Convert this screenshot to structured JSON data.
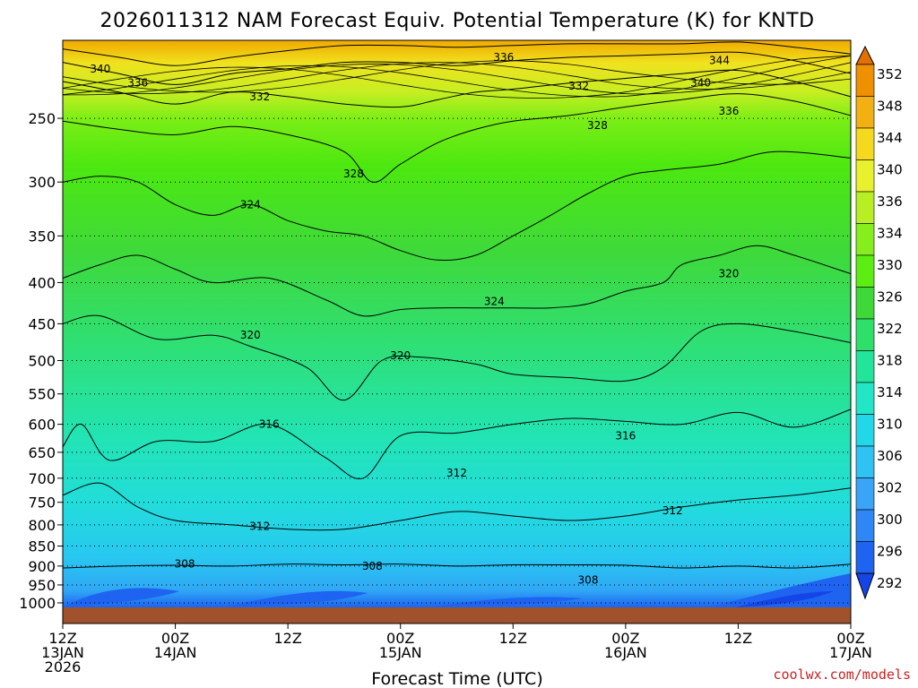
{
  "chart_data": {
    "type": "heatmap",
    "title": "2026011312 NAM Forecast Equiv. Potential Temperature (K) for KNTD",
    "xlabel": "Forecast Time (UTC)",
    "ylabel": "",
    "credit": "coolwx.com/models",
    "colors": {
      "credit": "#cc2222",
      "ground": "#a0522d"
    },
    "x_ticks": [
      {
        "hour": 0,
        "line1": "12Z",
        "line2": "13JAN",
        "line3": "2026"
      },
      {
        "hour": 12,
        "line1": "00Z",
        "line2": "14JAN",
        "line3": ""
      },
      {
        "hour": 24,
        "line1": "12Z",
        "line2": "",
        "line3": ""
      },
      {
        "hour": 36,
        "line1": "00Z",
        "line2": "15JAN",
        "line3": ""
      },
      {
        "hour": 48,
        "line1": "12Z",
        "line2": "",
        "line3": ""
      },
      {
        "hour": 60,
        "line1": "00Z",
        "line2": "16JAN",
        "line3": ""
      },
      {
        "hour": 72,
        "line1": "12Z",
        "line2": "",
        "line3": ""
      },
      {
        "hour": 84,
        "line1": "00Z",
        "line2": "17JAN",
        "line3": ""
      }
    ],
    "xlim": [
      0,
      84
    ],
    "y_ticks": [
      250,
      300,
      350,
      400,
      450,
      500,
      550,
      600,
      650,
      700,
      750,
      800,
      850,
      900,
      950,
      1000
    ],
    "ylim": [
      1013,
      200
    ],
    "colorbar": {
      "levels": [
        292,
        296,
        300,
        302,
        306,
        310,
        314,
        318,
        322,
        326,
        330,
        334,
        336,
        340,
        344,
        348,
        352
      ],
      "colors": [
        "#1545e6",
        "#1e64f0",
        "#2f86f5",
        "#3aa4f7",
        "#2ec3f2",
        "#22d8e8",
        "#22e6c6",
        "#22e49a",
        "#2ee06a",
        "#3ed939",
        "#5cee12",
        "#86ee1c",
        "#b8ee24",
        "#e8f12c",
        "#f5d91f",
        "#f2b012",
        "#ee9000",
        "#e07000"
      ]
    },
    "contours": [
      {
        "value": 308,
        "points": [
          [
            0,
            905
          ],
          [
            6,
            900
          ],
          [
            12,
            898
          ],
          [
            18,
            900
          ],
          [
            24,
            895
          ],
          [
            30,
            897
          ],
          [
            36,
            895
          ],
          [
            42,
            900
          ],
          [
            48,
            897
          ],
          [
            54,
            897
          ],
          [
            60,
            898
          ],
          [
            66,
            905
          ],
          [
            72,
            900
          ],
          [
            78,
            905
          ],
          [
            84,
            895
          ]
        ]
      },
      {
        "value": 312,
        "points": [
          [
            0,
            735
          ],
          [
            4,
            710
          ],
          [
            8,
            760
          ],
          [
            12,
            790
          ],
          [
            18,
            800
          ],
          [
            24,
            810
          ],
          [
            30,
            810
          ],
          [
            36,
            790
          ],
          [
            42,
            770
          ],
          [
            48,
            780
          ],
          [
            54,
            790
          ],
          [
            60,
            780
          ],
          [
            66,
            760
          ],
          [
            72,
            745
          ],
          [
            78,
            735
          ],
          [
            84,
            720
          ]
        ]
      },
      {
        "value": 316,
        "points": [
          [
            0,
            640
          ],
          [
            2,
            600
          ],
          [
            5,
            665
          ],
          [
            10,
            630
          ],
          [
            16,
            630
          ],
          [
            22,
            600
          ],
          [
            28,
            660
          ],
          [
            32,
            700
          ],
          [
            36,
            620
          ],
          [
            42,
            615
          ],
          [
            48,
            600
          ],
          [
            54,
            590
          ],
          [
            60,
            595
          ],
          [
            66,
            600
          ],
          [
            72,
            580
          ],
          [
            78,
            605
          ],
          [
            84,
            575
          ]
        ]
      },
      {
        "value": 320,
        "points": [
          [
            0,
            450
          ],
          [
            4,
            440
          ],
          [
            10,
            470
          ],
          [
            16,
            465
          ],
          [
            20,
            480
          ],
          [
            26,
            510
          ],
          [
            30,
            560
          ],
          [
            34,
            500
          ],
          [
            38,
            495
          ],
          [
            44,
            505
          ],
          [
            48,
            520
          ],
          [
            54,
            525
          ],
          [
            60,
            530
          ],
          [
            64,
            510
          ],
          [
            68,
            460
          ],
          [
            72,
            450
          ],
          [
            78,
            460
          ],
          [
            84,
            475
          ]
        ]
      },
      {
        "value": 324,
        "points": [
          [
            0,
            395
          ],
          [
            4,
            380
          ],
          [
            8,
            370
          ],
          [
            12,
            385
          ],
          [
            16,
            400
          ],
          [
            22,
            395
          ],
          [
            28,
            420
          ],
          [
            32,
            440
          ],
          [
            36,
            432
          ],
          [
            40,
            430
          ],
          [
            44,
            430
          ],
          [
            48,
            430
          ],
          [
            52,
            430
          ],
          [
            56,
            425
          ],
          [
            60,
            410
          ],
          [
            64,
            400
          ],
          [
            66,
            380
          ],
          [
            70,
            370
          ],
          [
            74,
            360
          ],
          [
            78,
            370
          ],
          [
            84,
            390
          ]
        ]
      },
      {
        "value": 328,
        "points": [
          [
            0,
            300
          ],
          [
            4,
            295
          ],
          [
            8,
            300
          ],
          [
            12,
            320
          ],
          [
            16,
            330
          ],
          [
            20,
            320
          ],
          [
            24,
            335
          ],
          [
            28,
            345
          ],
          [
            32,
            350
          ],
          [
            36,
            365
          ],
          [
            40,
            375
          ],
          [
            44,
            370
          ],
          [
            48,
            350
          ],
          [
            52,
            330
          ],
          [
            56,
            310
          ],
          [
            60,
            295
          ],
          [
            64,
            290
          ],
          [
            70,
            285
          ],
          [
            76,
            275
          ],
          [
            84,
            280
          ]
        ]
      },
      {
        "value": 332,
        "points": [
          [
            0,
            252
          ],
          [
            6,
            258
          ],
          [
            12,
            262
          ],
          [
            18,
            256
          ],
          [
            24,
            262
          ],
          [
            30,
            275
          ],
          [
            33,
            300
          ],
          [
            36,
            285
          ],
          [
            40,
            268
          ],
          [
            44,
            258
          ],
          [
            48,
            252
          ],
          [
            54,
            248
          ],
          [
            60,
            242
          ],
          [
            66,
            237
          ],
          [
            72,
            233
          ],
          [
            78,
            238
          ],
          [
            84,
            248
          ]
        ]
      },
      {
        "value": 336,
        "points": [
          [
            0,
            225
          ],
          [
            6,
            232
          ],
          [
            12,
            240
          ],
          [
            18,
            232
          ],
          [
            24,
            235
          ],
          [
            30,
            240
          ],
          [
            36,
            242
          ],
          [
            40,
            237
          ],
          [
            44,
            232
          ],
          [
            48,
            230
          ],
          [
            54,
            226
          ],
          [
            60,
            223
          ],
          [
            66,
            220
          ],
          [
            72,
            218
          ],
          [
            78,
            225
          ],
          [
            84,
            235
          ]
        ]
      },
      {
        "value": 340,
        "points": [
          [
            0,
            213
          ],
          [
            6,
            220
          ],
          [
            12,
            227
          ],
          [
            18,
            220
          ],
          [
            24,
            217
          ],
          [
            30,
            213
          ],
          [
            36,
            213
          ],
          [
            42,
            215
          ],
          [
            48,
            212
          ],
          [
            54,
            210
          ],
          [
            60,
            209
          ],
          [
            66,
            208
          ],
          [
            72,
            207
          ],
          [
            78,
            212
          ],
          [
            84,
            220
          ]
        ]
      },
      {
        "value": 344,
        "points": [
          [
            0,
            205
          ],
          [
            6,
            210
          ],
          [
            12,
            215
          ],
          [
            18,
            210
          ],
          [
            24,
            206
          ],
          [
            30,
            203
          ],
          [
            36,
            203
          ],
          [
            42,
            204
          ],
          [
            48,
            203
          ],
          [
            54,
            202
          ],
          [
            60,
            202
          ],
          [
            66,
            202
          ],
          [
            72,
            201
          ],
          [
            78,
            204
          ],
          [
            84,
            208
          ]
        ]
      }
    ],
    "contour_labels": [
      {
        "text": "340",
        "hour": 4,
        "p": 217
      },
      {
        "text": "336",
        "hour": 8,
        "p": 226
      },
      {
        "text": "332",
        "hour": 21,
        "p": 235
      },
      {
        "text": "336",
        "hour": 47,
        "p": 210
      },
      {
        "text": "344",
        "hour": 70,
        "p": 212
      },
      {
        "text": "332",
        "hour": 55,
        "p": 228
      },
      {
        "text": "340",
        "hour": 68,
        "p": 226
      },
      {
        "text": "336",
        "hour": 71,
        "p": 245
      },
      {
        "text": "328",
        "hour": 57,
        "p": 255
      },
      {
        "text": "328",
        "hour": 31,
        "p": 293
      },
      {
        "text": "324",
        "hour": 20,
        "p": 320
      },
      {
        "text": "320",
        "hour": 71,
        "p": 390
      },
      {
        "text": "324",
        "hour": 46,
        "p": 422
      },
      {
        "text": "320",
        "hour": 20,
        "p": 465
      },
      {
        "text": "320",
        "hour": 36,
        "p": 493
      },
      {
        "text": "316",
        "hour": 22,
        "p": 600
      },
      {
        "text": "316",
        "hour": 60,
        "p": 620
      },
      {
        "text": "312",
        "hour": 42,
        "p": 690
      },
      {
        "text": "312",
        "hour": 65,
        "p": 768
      },
      {
        "text": "312",
        "hour": 21,
        "p": 803
      },
      {
        "text": "308",
        "hour": 13,
        "p": 895
      },
      {
        "text": "308",
        "hour": 33,
        "p": 900
      },
      {
        "text": "308",
        "hour": 56,
        "p": 937
      }
    ]
  }
}
